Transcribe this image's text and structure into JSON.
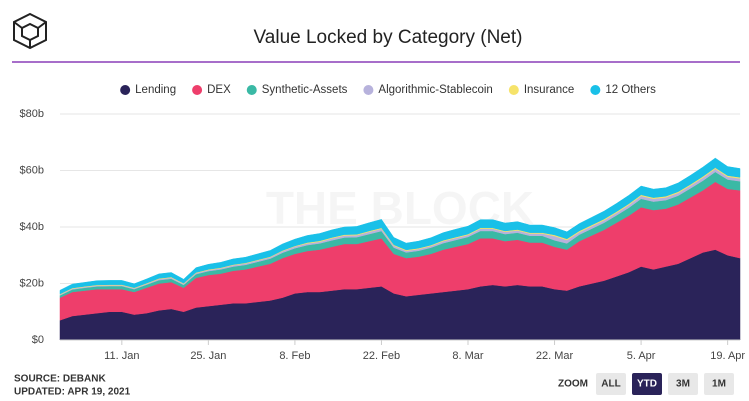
{
  "chart_data": {
    "type": "stacked-area",
    "title": "Value Locked by Category (Net)",
    "watermark": "THE BLOCK",
    "categories": [
      null,
      null,
      null,
      null,
      null,
      "11. Jan",
      null,
      null,
      null,
      null,
      null,
      null,
      "25. Jan",
      null,
      null,
      null,
      null,
      null,
      null,
      "8. Feb",
      null,
      null,
      null,
      null,
      null,
      null,
      "22. Feb",
      null,
      null,
      null,
      null,
      null,
      null,
      "8. Mar",
      null,
      null,
      null,
      null,
      null,
      null,
      "22. Mar",
      null,
      null,
      null,
      null,
      null,
      null,
      "5. Apr",
      null,
      null,
      null,
      null,
      null,
      null,
      "19. Apr",
      null
    ],
    "series": [
      {
        "name": "Lending",
        "color": "#2a2359",
        "values": [
          7,
          8.5,
          9,
          9.5,
          10,
          10,
          9,
          9.5,
          10.5,
          11,
          10,
          11.5,
          12,
          12.5,
          13,
          13,
          13.5,
          14,
          15,
          16.5,
          17,
          17,
          17.5,
          18,
          18,
          18.5,
          19,
          16.5,
          15.5,
          16,
          16.5,
          17,
          17.5,
          18,
          19,
          19.5,
          19,
          19.5,
          19,
          19,
          18,
          17.5,
          19,
          20,
          21,
          22.5,
          24,
          26,
          25,
          26,
          27,
          29,
          31,
          32,
          30,
          29
        ]
      },
      {
        "name": "DEX",
        "color": "#ee3e6b",
        "values": [
          8,
          8.5,
          8.5,
          8.5,
          8,
          8,
          8,
          9,
          9.5,
          9.5,
          8.5,
          10.5,
          11,
          11,
          11.5,
          12,
          12.5,
          13,
          14,
          14,
          14.5,
          15,
          15.5,
          16,
          16,
          16.5,
          17,
          14,
          13.5,
          13.5,
          14,
          15,
          15.5,
          16,
          17,
          16.5,
          16,
          16,
          15.5,
          15.5,
          15,
          14.5,
          16,
          17,
          18,
          19,
          20,
          21,
          21,
          20.5,
          21,
          21.5,
          22,
          24,
          23.5,
          24
        ]
      },
      {
        "name": "Synthetic-Assets",
        "color": "#3ab9a5",
        "values": [
          0.8,
          0.9,
          1,
          1,
          1.1,
          1.1,
          1,
          1.1,
          1.2,
          1.2,
          1,
          1.3,
          1.4,
          1.5,
          1.5,
          1.6,
          1.7,
          1.8,
          1.9,
          2,
          2.1,
          2.2,
          2.3,
          2.3,
          2.4,
          2.5,
          2.6,
          2.2,
          2,
          2.1,
          2.2,
          2.3,
          2.4,
          2.5,
          2.6,
          2.6,
          2.5,
          2.5,
          2.4,
          2.4,
          2.3,
          2.2,
          2.3,
          2.4,
          2.5,
          2.6,
          2.8,
          3,
          3,
          3,
          3.1,
          3.2,
          3.4,
          3.5,
          3.3,
          3.2
        ]
      },
      {
        "name": "Algorithmic-Stablecoin",
        "color": "#b7b2dc",
        "values": [
          0.3,
          0.3,
          0.3,
          0.3,
          0.3,
          0.3,
          0.3,
          0.3,
          0.4,
          0.4,
          0.4,
          0.4,
          0.4,
          0.4,
          0.5,
          0.5,
          0.5,
          0.5,
          0.6,
          0.6,
          0.6,
          0.6,
          0.7,
          0.7,
          0.7,
          0.8,
          0.8,
          0.7,
          0.6,
          0.6,
          0.6,
          0.7,
          0.7,
          0.7,
          0.8,
          0.8,
          0.8,
          0.8,
          0.8,
          0.8,
          1.5,
          1.2,
          0.9,
          0.9,
          0.9,
          0.9,
          1,
          1,
          1,
          1,
          1,
          1,
          1.1,
          1.1,
          1,
          1
        ]
      },
      {
        "name": "Insurance",
        "color": "#f6e36a",
        "values": [
          0.2,
          0.2,
          0.2,
          0.2,
          0.2,
          0.2,
          0.2,
          0.2,
          0.2,
          0.2,
          0.2,
          0.2,
          0.2,
          0.2,
          0.2,
          0.2,
          0.2,
          0.2,
          0.2,
          0.2,
          0.3,
          0.3,
          0.3,
          0.3,
          0.3,
          0.3,
          0.3,
          0.3,
          0.3,
          0.3,
          0.3,
          0.3,
          0.3,
          0.3,
          0.3,
          0.3,
          0.3,
          0.3,
          0.3,
          0.3,
          0.4,
          0.4,
          0.4,
          0.4,
          0.4,
          0.4,
          0.4,
          0.4,
          0.4,
          0.4,
          0.4,
          0.4,
          0.4,
          0.4,
          0.4,
          0.4
        ]
      },
      {
        "name": "12 Others",
        "color": "#19c0e8",
        "values": [
          1.3,
          1.4,
          1.4,
          1.5,
          1.5,
          1.5,
          1.4,
          1.5,
          1.6,
          1.6,
          1.4,
          1.7,
          1.8,
          1.9,
          2,
          2,
          2.1,
          2.2,
          2.3,
          2.4,
          2.5,
          2.6,
          2.7,
          2.7,
          2.8,
          2.9,
          3,
          2.6,
          2.4,
          2.5,
          2.6,
          2.7,
          2.8,
          2.8,
          2.9,
          2.9,
          2.8,
          2.8,
          2.7,
          2.7,
          2.6,
          2.5,
          2.6,
          2.7,
          2.8,
          2.9,
          3,
          3.1,
          3,
          3,
          3.1,
          3.2,
          3.3,
          3.4,
          3.2,
          3.1
        ]
      }
    ],
    "ylim": [
      0,
      80
    ],
    "yticks": [
      {
        "value": 0,
        "label": "$0"
      },
      {
        "value": 20,
        "label": "$20b"
      },
      {
        "value": 40,
        "label": "$40b"
      },
      {
        "value": 60,
        "label": "$60b"
      },
      {
        "value": 80,
        "label": "$80b"
      }
    ],
    "grid": true,
    "legend": "top",
    "source": "SOURCE: DEBANK",
    "updated": "UPDATED: APR 19, 2021",
    "zoom_label": "ZOOM",
    "zoom_buttons": [
      "ALL",
      "YTD",
      "3M",
      "1M"
    ],
    "zoom_selected": "YTD"
  }
}
